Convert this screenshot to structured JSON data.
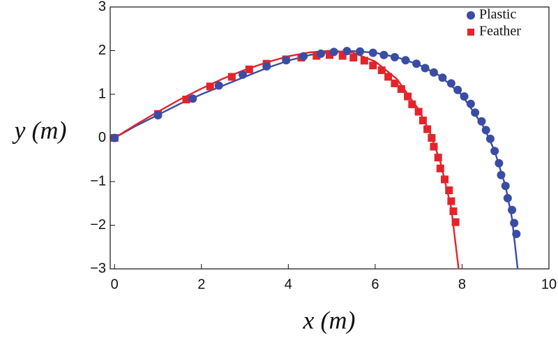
{
  "chart_data": {
    "type": "scatter",
    "xlabel": "x (m)",
    "ylabel": "y (m)",
    "xlim": [
      -0.1,
      10
    ],
    "ylim": [
      -3,
      3
    ],
    "xticks": [
      0,
      2,
      4,
      6,
      8,
      10
    ],
    "yticks": [
      {
        "value": -3,
        "label": "−3"
      },
      {
        "value": -2,
        "label": "−2"
      },
      {
        "value": -1,
        "label": "−1"
      },
      0,
      1,
      2,
      3
    ],
    "legend": "northeast",
    "series": [
      {
        "name": "Plastic",
        "color": "#3a4da3",
        "marker": "circle",
        "x": [
          0,
          1,
          1.8,
          2.4,
          2.95,
          3.5,
          3.95,
          4.35,
          4.75,
          5.05,
          5.35,
          5.65,
          5.95,
          6.2,
          6.45,
          6.7,
          6.95,
          7.15,
          7.35,
          7.55,
          7.75,
          7.9,
          8.05,
          8.2,
          8.3,
          8.45,
          8.55,
          8.65,
          8.75,
          8.85,
          8.9,
          9.0,
          9.05,
          9.15,
          9.2,
          9.25
        ],
        "values": [
          0,
          0.52,
          0.9,
          1.2,
          1.45,
          1.64,
          1.78,
          1.87,
          1.93,
          1.97,
          1.99,
          1.98,
          1.95,
          1.9,
          1.85,
          1.78,
          1.7,
          1.6,
          1.5,
          1.38,
          1.25,
          1.1,
          0.95,
          0.78,
          0.58,
          0.38,
          0.18,
          -0.02,
          -0.3,
          -0.58,
          -0.85,
          -1.1,
          -1.38,
          -1.65,
          -1.95,
          -2.2
        ],
        "fit": {
          "x": [
            0,
            0.5,
            1,
            1.5,
            2,
            2.5,
            3,
            3.5,
            4,
            4.5,
            5,
            5.5,
            6,
            6.5,
            7,
            7.5,
            8,
            8.5,
            8.75,
            9,
            9.15,
            9.28
          ],
          "values": [
            0,
            0.28,
            0.53,
            0.78,
            1.0,
            1.2,
            1.4,
            1.6,
            1.77,
            1.9,
            1.97,
            1.99,
            1.95,
            1.85,
            1.68,
            1.42,
            0.98,
            0.25,
            -0.3,
            -1.1,
            -1.85,
            -3.0
          ]
        }
      },
      {
        "name": "Feather",
        "color": "#e3242b",
        "marker": "square",
        "x": [
          0,
          1,
          1.65,
          2.2,
          2.7,
          3.1,
          3.5,
          3.95,
          4.3,
          4.65,
          4.95,
          5.25,
          5.5,
          5.75,
          5.95,
          6.15,
          6.3,
          6.45,
          6.6,
          6.75,
          6.85,
          7.0,
          7.1,
          7.2,
          7.3,
          7.35,
          7.45,
          7.5,
          7.6,
          7.7,
          7.75,
          7.8,
          7.85
        ],
        "values": [
          0,
          0.55,
          0.88,
          1.18,
          1.4,
          1.57,
          1.7,
          1.8,
          1.84,
          1.88,
          1.9,
          1.88,
          1.84,
          1.77,
          1.66,
          1.55,
          1.4,
          1.25,
          1.12,
          0.95,
          0.77,
          0.6,
          0.4,
          0.2,
          0.0,
          -0.2,
          -0.45,
          -0.7,
          -0.95,
          -1.2,
          -1.45,
          -1.68,
          -1.93
        ],
        "fit": {
          "x": [
            0,
            0.5,
            1,
            1.5,
            2,
            2.5,
            3,
            3.5,
            4,
            4.5,
            5,
            5.5,
            6,
            6.5,
            7,
            7.25,
            7.5,
            7.75,
            7.92
          ],
          "values": [
            0,
            0.31,
            0.6,
            0.88,
            1.13,
            1.36,
            1.56,
            1.73,
            1.87,
            1.96,
            2.0,
            1.95,
            1.75,
            1.35,
            0.65,
            0.15,
            -0.55,
            -1.6,
            -3.0
          ]
        }
      }
    ]
  }
}
